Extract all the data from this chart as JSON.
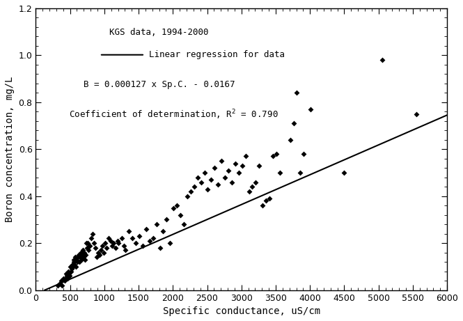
{
  "title": "",
  "xlabel": "Specific conductance, uS/cm",
  "ylabel": "Boron concentration, mg/L",
  "xlim": [
    0,
    6000
  ],
  "ylim": [
    0,
    1.2
  ],
  "xticks": [
    0,
    500,
    1000,
    1500,
    2000,
    2500,
    3000,
    3500,
    4000,
    4500,
    5000,
    5500,
    6000
  ],
  "yticks": [
    0.0,
    0.2,
    0.4,
    0.6,
    0.8,
    1.0,
    1.2
  ],
  "regression_slope": 0.000127,
  "regression_intercept": -0.0167,
  "r2": 0.79,
  "annotation_text1": "KGS data, 1994-2000",
  "annotation_text2": "B = 0.000127 x Sp.C. - 0.0167",
  "legend_line_label": "Linear regression for data",
  "scatter_color": "#000000",
  "line_color": "#000000",
  "scatter_x": [
    320,
    350,
    370,
    380,
    400,
    420,
    430,
    440,
    450,
    460,
    470,
    480,
    490,
    500,
    510,
    520,
    530,
    540,
    550,
    560,
    570,
    580,
    590,
    600,
    610,
    620,
    630,
    640,
    650,
    660,
    670,
    680,
    690,
    700,
    710,
    720,
    730,
    740,
    750,
    760,
    770,
    790,
    810,
    830,
    850,
    870,
    890,
    910,
    930,
    950,
    970,
    990,
    1010,
    1030,
    1060,
    1090,
    1110,
    1130,
    1160,
    1190,
    1210,
    1260,
    1290,
    1310,
    1360,
    1410,
    1460,
    1510,
    1560,
    1610,
    1660,
    1710,
    1760,
    1810,
    1860,
    1910,
    1960,
    2010,
    2060,
    2110,
    2160,
    2210,
    2260,
    2310,
    2360,
    2410,
    2460,
    2510,
    2560,
    2610,
    2660,
    2710,
    2760,
    2810,
    2860,
    2910,
    2960,
    3010,
    3060,
    3110,
    3160,
    3210,
    3260,
    3310,
    3360,
    3410,
    3460,
    3510,
    3560,
    3710,
    3760,
    3810,
    3860,
    3910,
    4010,
    4500,
    5050,
    5550
  ],
  "scatter_y": [
    0.02,
    0.03,
    0.04,
    0.02,
    0.05,
    0.04,
    0.05,
    0.07,
    0.06,
    0.05,
    0.08,
    0.07,
    0.06,
    0.1,
    0.08,
    0.09,
    0.11,
    0.1,
    0.12,
    0.13,
    0.11,
    0.14,
    0.1,
    0.13,
    0.12,
    0.14,
    0.15,
    0.12,
    0.14,
    0.16,
    0.13,
    0.15,
    0.17,
    0.14,
    0.16,
    0.13,
    0.15,
    0.2,
    0.18,
    0.2,
    0.17,
    0.19,
    0.22,
    0.24,
    0.2,
    0.18,
    0.14,
    0.16,
    0.15,
    0.17,
    0.19,
    0.16,
    0.2,
    0.18,
    0.22,
    0.21,
    0.19,
    0.2,
    0.18,
    0.21,
    0.2,
    0.22,
    0.19,
    0.17,
    0.25,
    0.22,
    0.2,
    0.23,
    0.19,
    0.26,
    0.21,
    0.22,
    0.28,
    0.18,
    0.25,
    0.3,
    0.2,
    0.35,
    0.36,
    0.32,
    0.28,
    0.4,
    0.42,
    0.44,
    0.48,
    0.46,
    0.5,
    0.43,
    0.47,
    0.52,
    0.45,
    0.55,
    0.48,
    0.51,
    0.46,
    0.54,
    0.5,
    0.53,
    0.57,
    0.42,
    0.44,
    0.46,
    0.53,
    0.36,
    0.38,
    0.39,
    0.57,
    0.58,
    0.5,
    0.64,
    0.71,
    0.84,
    0.5,
    0.58,
    0.77,
    0.5,
    0.98,
    0.75
  ]
}
